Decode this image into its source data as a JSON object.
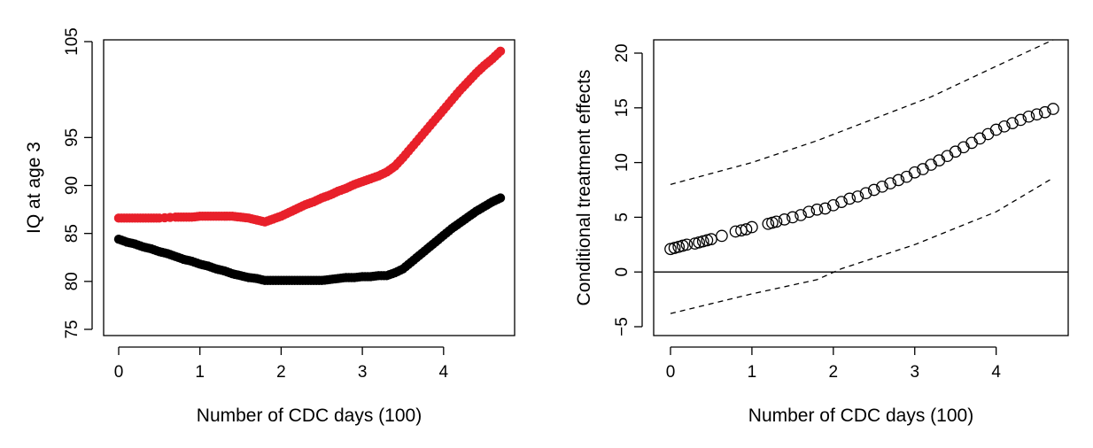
{
  "chart_data": [
    {
      "type": "scatter",
      "xlabel": "Number of CDC days (100)",
      "ylabel": "IQ at age 3",
      "xlim": [
        0,
        4.7
      ],
      "ylim": [
        75,
        105
      ],
      "xticks": [
        0,
        1,
        2,
        3,
        4
      ],
      "yticks": [
        75,
        80,
        85,
        90,
        95,
        105
      ],
      "grid": false,
      "legend": "none",
      "colors": {
        "series_1": "#e8202a",
        "series_2": "#000000"
      },
      "series": [
        {
          "marker": "filled-circle",
          "color": "#e8202a",
          "points": [
            [
              0.0,
              86.6
            ],
            [
              0.1,
              86.6
            ],
            [
              0.2,
              86.6
            ],
            [
              0.3,
              86.6
            ],
            [
              0.4,
              86.6
            ],
            [
              0.5,
              86.6
            ],
            [
              0.7,
              86.7
            ],
            [
              0.8,
              86.7
            ],
            [
              0.9,
              86.7
            ],
            [
              1.0,
              86.8
            ],
            [
              1.1,
              86.8
            ],
            [
              1.2,
              86.8
            ],
            [
              1.3,
              86.8
            ],
            [
              1.4,
              86.8
            ],
            [
              1.5,
              86.7
            ],
            [
              1.6,
              86.6
            ],
            [
              1.7,
              86.4
            ],
            [
              1.8,
              86.2
            ],
            [
              1.9,
              86.5
            ],
            [
              2.0,
              86.8
            ],
            [
              2.1,
              87.2
            ],
            [
              2.2,
              87.6
            ],
            [
              2.3,
              88.0
            ],
            [
              2.4,
              88.3
            ],
            [
              2.5,
              88.7
            ],
            [
              2.6,
              89.0
            ],
            [
              2.7,
              89.4
            ],
            [
              2.8,
              89.7
            ],
            [
              2.9,
              90.1
            ],
            [
              3.0,
              90.4
            ],
            [
              3.1,
              90.7
            ],
            [
              3.2,
              91.0
            ],
            [
              3.3,
              91.4
            ],
            [
              3.4,
              92.0
            ],
            [
              3.5,
              92.9
            ],
            [
              3.6,
              93.9
            ],
            [
              3.7,
              94.9
            ],
            [
              3.8,
              95.9
            ],
            [
              3.9,
              96.9
            ],
            [
              4.0,
              97.9
            ],
            [
              4.1,
              98.9
            ],
            [
              4.2,
              99.9
            ],
            [
              4.3,
              100.8
            ],
            [
              4.4,
              101.7
            ],
            [
              4.5,
              102.5
            ],
            [
              4.6,
              103.2
            ],
            [
              4.7,
              104.0
            ]
          ]
        },
        {
          "marker": "filled-circle",
          "color": "#000000",
          "points": [
            [
              0.0,
              84.4
            ],
            [
              0.1,
              84.1
            ],
            [
              0.2,
              83.9
            ],
            [
              0.3,
              83.6
            ],
            [
              0.4,
              83.4
            ],
            [
              0.5,
              83.1
            ],
            [
              0.6,
              82.9
            ],
            [
              0.7,
              82.6
            ],
            [
              0.8,
              82.3
            ],
            [
              0.9,
              82.1
            ],
            [
              1.0,
              81.8
            ],
            [
              1.1,
              81.6
            ],
            [
              1.2,
              81.3
            ],
            [
              1.3,
              81.1
            ],
            [
              1.4,
              80.8
            ],
            [
              1.5,
              80.6
            ],
            [
              1.6,
              80.4
            ],
            [
              1.7,
              80.3
            ],
            [
              1.8,
              80.1
            ],
            [
              1.9,
              80.1
            ],
            [
              2.0,
              80.1
            ],
            [
              2.1,
              80.1
            ],
            [
              2.2,
              80.1
            ],
            [
              2.3,
              80.1
            ],
            [
              2.4,
              80.1
            ],
            [
              2.5,
              80.1
            ],
            [
              2.6,
              80.2
            ],
            [
              2.7,
              80.3
            ],
            [
              2.8,
              80.4
            ],
            [
              2.9,
              80.4
            ],
            [
              3.0,
              80.5
            ],
            [
              3.1,
              80.5
            ],
            [
              3.2,
              80.6
            ],
            [
              3.3,
              80.6
            ],
            [
              3.4,
              80.9
            ],
            [
              3.5,
              81.3
            ],
            [
              3.6,
              82.0
            ],
            [
              3.7,
              82.7
            ],
            [
              3.8,
              83.4
            ],
            [
              3.9,
              84.1
            ],
            [
              4.0,
              84.8
            ],
            [
              4.1,
              85.5
            ],
            [
              4.2,
              86.1
            ],
            [
              4.3,
              86.7
            ],
            [
              4.4,
              87.3
            ],
            [
              4.5,
              87.8
            ],
            [
              4.6,
              88.3
            ],
            [
              4.7,
              88.7
            ]
          ]
        }
      ]
    },
    {
      "type": "scatter",
      "xlabel": "Number of CDC days (100)",
      "ylabel": "Conditional treatment effects",
      "xlim": [
        0,
        4.7
      ],
      "ylim": [
        -5,
        20
      ],
      "xticks": [
        0,
        1,
        2,
        3,
        4
      ],
      "yticks": [
        -5,
        0,
        5,
        10,
        15,
        20
      ],
      "grid": false,
      "legend": "none",
      "reference_line_y": 0,
      "series": [
        {
          "marker": "open-circle",
          "color": "#000000",
          "points": [
            [
              0.0,
              2.1
            ],
            [
              0.05,
              2.2
            ],
            [
              0.1,
              2.3
            ],
            [
              0.15,
              2.4
            ],
            [
              0.2,
              2.5
            ],
            [
              0.3,
              2.6
            ],
            [
              0.35,
              2.7
            ],
            [
              0.4,
              2.8
            ],
            [
              0.45,
              2.9
            ],
            [
              0.5,
              3.0
            ],
            [
              0.63,
              3.3
            ],
            [
              0.8,
              3.7
            ],
            [
              0.87,
              3.8
            ],
            [
              0.93,
              3.9
            ],
            [
              1.0,
              4.1
            ],
            [
              1.2,
              4.4
            ],
            [
              1.25,
              4.5
            ],
            [
              1.3,
              4.6
            ],
            [
              1.4,
              4.8
            ],
            [
              1.5,
              5.0
            ],
            [
              1.6,
              5.2
            ],
            [
              1.7,
              5.5
            ],
            [
              1.8,
              5.7
            ],
            [
              1.9,
              5.8
            ],
            [
              2.0,
              6.1
            ],
            [
              2.1,
              6.4
            ],
            [
              2.2,
              6.7
            ],
            [
              2.3,
              6.9
            ],
            [
              2.4,
              7.2
            ],
            [
              2.5,
              7.5
            ],
            [
              2.6,
              7.8
            ],
            [
              2.7,
              8.1
            ],
            [
              2.8,
              8.4
            ],
            [
              2.9,
              8.7
            ],
            [
              3.0,
              9.1
            ],
            [
              3.1,
              9.4
            ],
            [
              3.2,
              9.8
            ],
            [
              3.3,
              10.2
            ],
            [
              3.4,
              10.6
            ],
            [
              3.5,
              11.0
            ],
            [
              3.6,
              11.4
            ],
            [
              3.7,
              11.8
            ],
            [
              3.8,
              12.2
            ],
            [
              3.9,
              12.6
            ],
            [
              4.0,
              13.0
            ],
            [
              4.1,
              13.3
            ],
            [
              4.2,
              13.6
            ],
            [
              4.3,
              13.9
            ],
            [
              4.4,
              14.2
            ],
            [
              4.5,
              14.4
            ],
            [
              4.6,
              14.6
            ],
            [
              4.7,
              14.9
            ]
          ]
        },
        {
          "line": "dashed",
          "color": "#000000",
          "points": [
            [
              0,
              8.0
            ],
            [
              1.0,
              10.0
            ],
            [
              1.8,
              12.0
            ],
            [
              2.5,
              14.0
            ],
            [
              3.2,
              16.0
            ],
            [
              4.0,
              18.8
            ],
            [
              4.7,
              21.5
            ]
          ]
        },
        {
          "line": "dashed",
          "color": "#000000",
          "points": [
            [
              0,
              -3.8
            ],
            [
              1.0,
              -2.0
            ],
            [
              1.8,
              -0.7
            ],
            [
              2.1,
              0.3
            ],
            [
              3.0,
              2.5
            ],
            [
              4.0,
              5.5
            ],
            [
              4.7,
              8.6
            ]
          ]
        }
      ]
    }
  ]
}
